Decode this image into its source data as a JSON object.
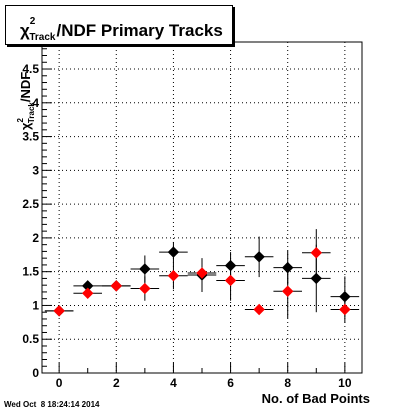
{
  "title": {
    "main": "/NDF Primary Tracks",
    "symbol": "χ",
    "sup": "2",
    "sub": "Track"
  },
  "timestamp": "Wed Oct  8 18:24:14 2014",
  "chart_data": {
    "type": "scatter",
    "xlabel": "No. of Bad Points",
    "ylabel": {
      "symbol": "χ",
      "sup": "2",
      "sub": "Track",
      "rest": "/NDF"
    },
    "xlim": [
      -0.6,
      10.6
    ],
    "ylim": [
      0,
      4.9
    ],
    "x_ticks": [
      "0",
      "2",
      "4",
      "6",
      "8",
      "10"
    ],
    "y_ticks": [
      "0",
      "0.5",
      "1",
      "1.5",
      "2",
      "2.5",
      "3",
      "3.5",
      "4",
      "4.5"
    ],
    "grid": true,
    "series": [
      {
        "color": "#000000",
        "points": [
          {
            "x": 0,
            "y": 0.92,
            "yerr": 0.0
          },
          {
            "x": 1,
            "y": 1.29,
            "yerr": 0.05
          },
          {
            "x": 2,
            "y": 1.29,
            "yerr": 0.07
          },
          {
            "x": 3,
            "y": 1.54,
            "yerr": 0.2
          },
          {
            "x": 4,
            "y": 1.79,
            "yerr": 0.15
          },
          {
            "x": 5,
            "y": 1.45,
            "yerr": 0.25
          },
          {
            "x": 6,
            "y": 1.59,
            "yerr": 0.2
          },
          {
            "x": 7,
            "y": 1.72,
            "yerr": 0.3
          },
          {
            "x": 8,
            "y": 1.56,
            "yerr": 0.25
          },
          {
            "x": 9,
            "y": 1.4,
            "yerr": 0.5
          },
          {
            "x": 10,
            "y": 1.13,
            "yerr": 0.3
          }
        ]
      },
      {
        "color": "#ff0000",
        "points": [
          {
            "x": 0,
            "y": 0.92,
            "yerr": 0.0
          },
          {
            "x": 1,
            "y": 1.18,
            "yerr": 0.05
          },
          {
            "x": 2,
            "y": 1.29,
            "yerr": 0.05
          },
          {
            "x": 3,
            "y": 1.25,
            "yerr": 0.18
          },
          {
            "x": 4,
            "y": 1.44,
            "yerr": 0.2
          },
          {
            "x": 5,
            "y": 1.48,
            "yerr": 0.1
          },
          {
            "x": 6,
            "y": 1.37,
            "yerr": 0.3
          },
          {
            "x": 7,
            "y": 0.94,
            "yerr": 0.05
          },
          {
            "x": 8,
            "y": 1.21,
            "yerr": 0.4
          },
          {
            "x": 9,
            "y": 1.78,
            "yerr": 0.35
          },
          {
            "x": 10,
            "y": 0.94,
            "yerr": 0.2
          }
        ]
      }
    ]
  }
}
